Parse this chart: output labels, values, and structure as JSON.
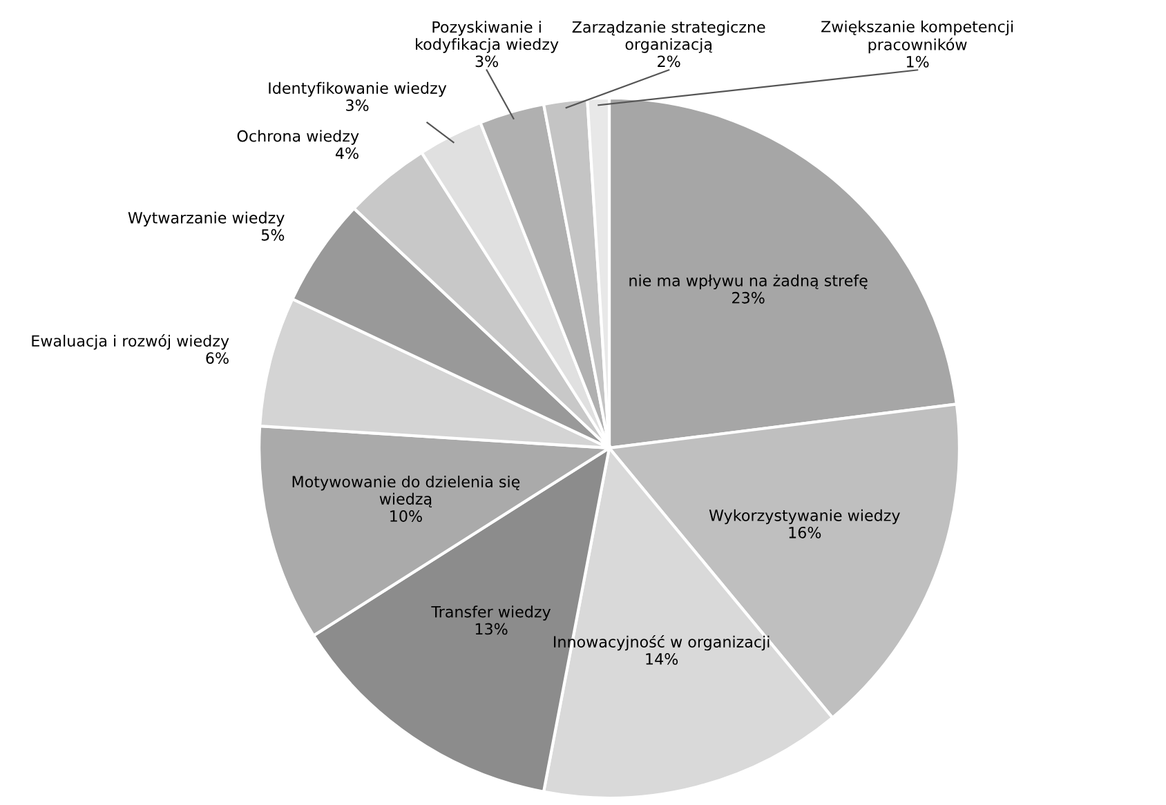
{
  "chart_data": {
    "type": "pie",
    "categories": [
      "nie ma wpływu na żadną strefę",
      "Wykorzystywanie wiedzy",
      "Innowacyjność w organizacji",
      "Transfer wiedzy",
      "Motywowanie do dzielenia się\nwiedzą",
      "Ewaluacja i rozwój wiedzy",
      "Wytwarzanie wiedzy",
      "Ochrona wiedzy",
      "Identyfikowanie wiedzy",
      "Pozyskiwanie i\nkodyfikacja wiedzy",
      "Zarządzanie strategiczne\norganizacją",
      "Zwiększanie kompetencji\npracowników"
    ],
    "values": [
      23,
      16,
      14,
      13,
      10,
      6,
      5,
      4,
      3,
      3,
      2,
      1
    ],
    "value_labels": [
      "23%",
      "16%",
      "14%",
      "13%",
      "10%",
      "6%",
      "5%",
      "4%",
      "3%",
      "3%",
      "2%",
      "1%"
    ],
    "colors": [
      "#a6a6a6",
      "#bfbfbf",
      "#d9d9d9",
      "#8c8c8c",
      "#aaaaaa",
      "#d4d4d4",
      "#999999",
      "#c8c8c8",
      "#e0e0e0",
      "#b0b0b0",
      "#c4c4c4",
      "#e8e8e8"
    ],
    "legend": false
  }
}
